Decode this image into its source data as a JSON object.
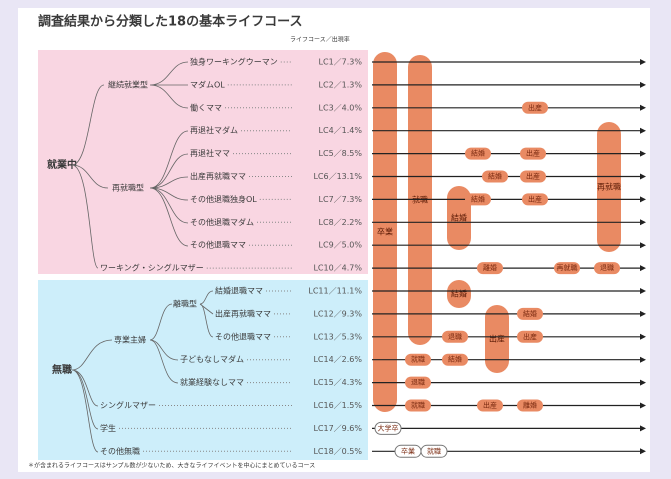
{
  "header": {
    "title": "調査結果から分類した18の基本ライフコース",
    "legend": "ライフコース／出現率"
  },
  "groups": {
    "employed": "就業中",
    "unemployed": "無職",
    "continuous": "継続就業型",
    "reemployed": "再就職型",
    "housewife": "専業主婦",
    "resigned": "離職型"
  },
  "rows": [
    {
      "label": "独身ワーキングウーマン",
      "course": "LC1／7.3%"
    },
    {
      "label": "マダムOL",
      "course": "LC2／1.3%"
    },
    {
      "label": "働くママ",
      "course": "LC3／4.0%"
    },
    {
      "label": "再退社マダム",
      "course": "LC4／1.4%"
    },
    {
      "label": "再退社ママ",
      "course": "LC5／8.5%"
    },
    {
      "label": "出産再就職ママ",
      "course": "LC6／13.1%"
    },
    {
      "label": "その他退職独身OL",
      "course": "LC7／7.3%"
    },
    {
      "label": "その他退職マダム",
      "course": "LC8／2.2%"
    },
    {
      "label": "その他退職ママ",
      "course": "LC9／5.0%"
    },
    {
      "label": "ワーキング・シングルマザー",
      "course": "LC10／4.7%"
    },
    {
      "label": "結婚退職ママ",
      "course": "LC11／11.1%"
    },
    {
      "label": "出産再就職ママ",
      "course": "LC12／9.3%"
    },
    {
      "label": "その他退職ママ",
      "course": "LC13／5.3%"
    },
    {
      "label": "子どもなしマダム",
      "course": "LC14／2.6%"
    },
    {
      "label": "就業経験なしママ",
      "course": "LC15／4.3%"
    },
    {
      "label": "シングルマザー",
      "course": "LC16／1.5%"
    },
    {
      "label": "学生",
      "course": "LC17／9.6%"
    },
    {
      "label": "その他無職",
      "course": "LC18／0.5%"
    }
  ],
  "pills": [
    "卒業",
    "就職",
    "結婚",
    "結婚",
    "出産",
    "再就職"
  ],
  "events": [
    "出産",
    "結婚",
    "出産",
    "結婚",
    "出産",
    "結婚",
    "出産",
    "離婚",
    "再就職",
    "退職",
    "結婚",
    "出産",
    "退職",
    "結婚",
    "就職",
    "退職",
    "就職",
    "出産",
    "離婚",
    "大学卒",
    "卒業",
    "就職"
  ],
  "footnote": "＊が含まれるライフコースはサンプル数が少ないため、大きなライフイベントを中心にまとめているコース"
}
